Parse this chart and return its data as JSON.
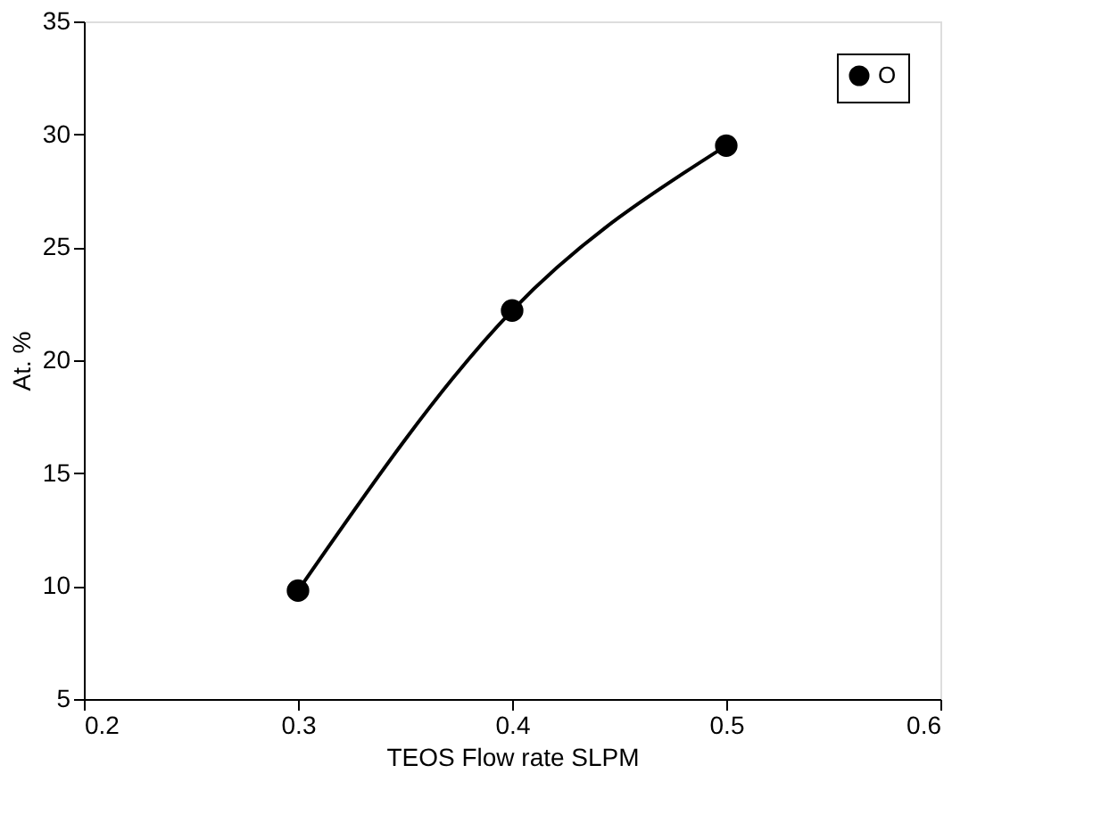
{
  "chart_data": {
    "type": "line",
    "xlabel": "TEOS Flow rate SLPM",
    "ylabel": "At. %",
    "x": [
      0.3,
      0.4,
      0.5
    ],
    "series": [
      {
        "name": "O",
        "color": "#000000",
        "values": [
          9.8,
          22.2,
          29.5
        ]
      }
    ],
    "xlim": [
      0.2,
      0.6
    ],
    "xticks": [
      0.2,
      0.3,
      0.4,
      0.5,
      0.6
    ],
    "ylim": [
      5,
      35
    ],
    "yticks": [
      5,
      10,
      15,
      20,
      25,
      30,
      35
    ],
    "grid": false,
    "legend": "top right",
    "marker": "circle",
    "line_style": "solid"
  }
}
